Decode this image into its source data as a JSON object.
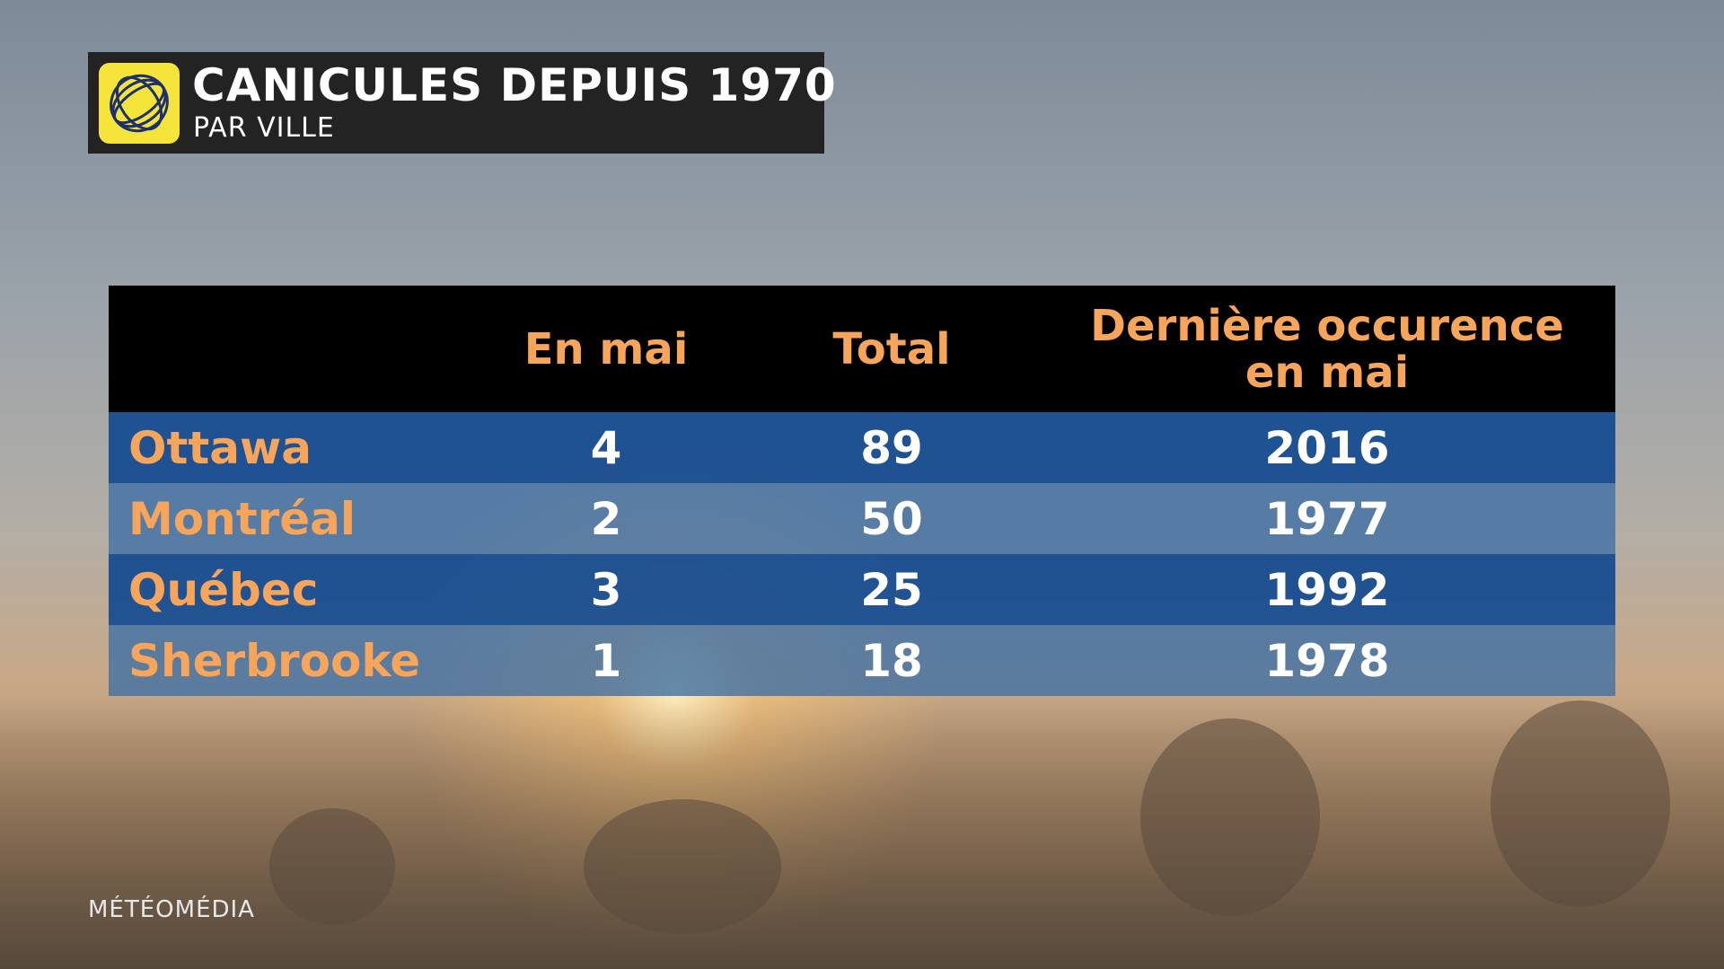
{
  "header": {
    "title": "CANICULES DEPUIS 1970",
    "subtitle": "PAR VILLE"
  },
  "table": {
    "columns": [
      "En mai",
      "Total",
      "Dernière occurence en mai"
    ],
    "rows": [
      [
        "Ottawa",
        4,
        89,
        2016
      ],
      [
        "Montréal",
        2,
        50,
        1977
      ],
      [
        "Québec",
        3,
        25,
        1992
      ],
      [
        "Sherbrooke",
        1,
        18,
        1978
      ]
    ]
  },
  "footer": {
    "brand": "MÉTÉOMÉDIA"
  }
}
